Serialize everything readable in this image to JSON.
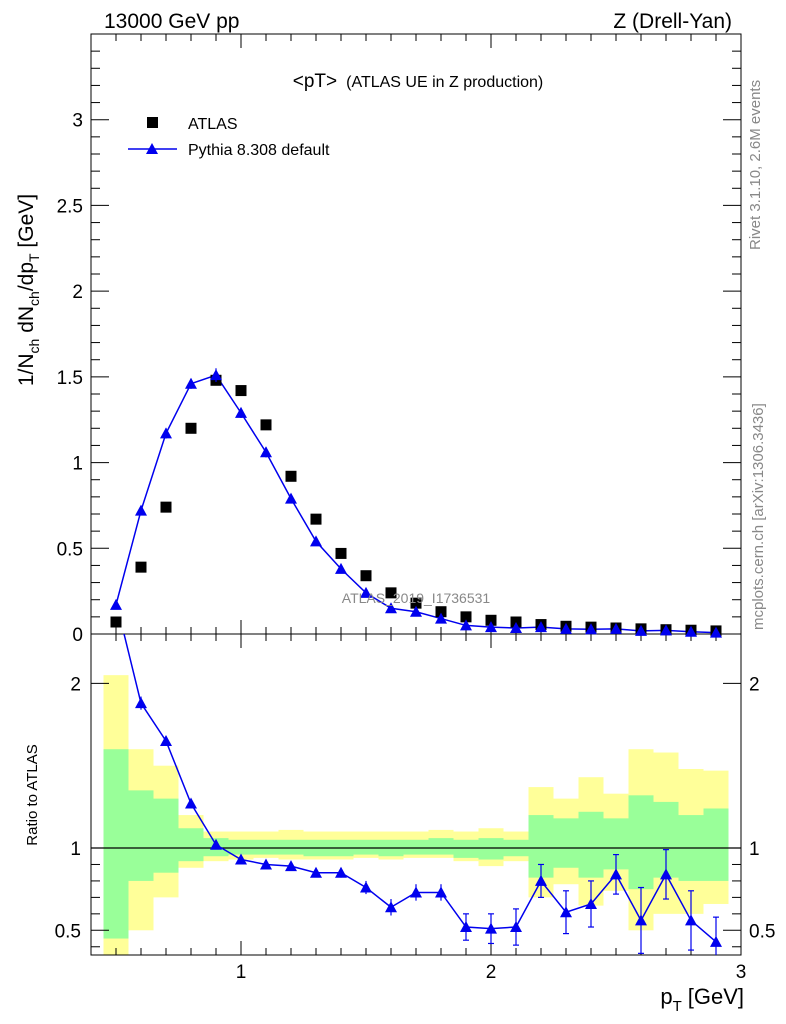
{
  "header": {
    "left": "13000 GeV pp",
    "right": "Z (Drell-Yan)"
  },
  "side_labels": {
    "rivet": "Rivet 3.1.10,  2.6M events",
    "mcplots": "mcplots.cern.ch [arXiv:1306.3436]"
  },
  "chart_data": {
    "type": "scatter",
    "title_main": "<pT>",
    "title_sub": "(ATLAS UE in Z production)",
    "watermark": "ATLAS_2019_I1736531",
    "xlabel_main": "p",
    "xlabel_sub": "T",
    "xlabel_unit": "[GeV]",
    "ylabel_parts": {
      "a": "1/N",
      "a_sub": "ch",
      "b": " dN",
      "b_sub": "ch",
      "c": "/dp",
      "c_sub": "T",
      "d": " [GeV]"
    },
    "ratio_ylabel": "Ratio to ATLAS",
    "xlim": [
      0.4,
      3.0
    ],
    "ylim": [
      0,
      3.5
    ],
    "ratio_ylim": [
      0.35,
      2.3
    ],
    "x_ticks": [
      1,
      2,
      3
    ],
    "y_ticks": [
      0,
      0.5,
      1,
      1.5,
      2,
      2.5,
      3
    ],
    "y_tick_labels": [
      "0",
      "0.5",
      "1",
      "1.5",
      "2",
      "2.5",
      "3"
    ],
    "ratio_ticks": [
      0.5,
      1,
      2
    ],
    "ratio_tick_labels": [
      "0.5",
      "1",
      "2"
    ],
    "x_tick_labels": [
      "1",
      "2",
      "3"
    ],
    "legend_position": "top-left",
    "series": [
      {
        "name": "ATLAS",
        "marker": "square",
        "color": "#000000",
        "x": [
          0.5,
          0.6,
          0.7,
          0.8,
          0.9,
          1.0,
          1.1,
          1.2,
          1.3,
          1.4,
          1.5,
          1.6,
          1.7,
          1.8,
          1.9,
          2.0,
          2.1,
          2.2,
          2.3,
          2.4,
          2.5,
          2.6,
          2.7,
          2.8,
          2.9
        ],
        "y": [
          0.07,
          0.39,
          0.74,
          1.2,
          1.48,
          1.42,
          1.22,
          0.92,
          0.67,
          0.47,
          0.34,
          0.24,
          0.18,
          0.13,
          0.1,
          0.08,
          0.07,
          0.055,
          0.045,
          0.04,
          0.035,
          0.03,
          0.025,
          0.022,
          0.018
        ]
      },
      {
        "name": "Pythia 8.308 default",
        "marker": "triangle",
        "color": "#0000ee",
        "x": [
          0.5,
          0.6,
          0.7,
          0.8,
          0.9,
          1.0,
          1.1,
          1.2,
          1.3,
          1.4,
          1.5,
          1.6,
          1.7,
          1.8,
          1.9,
          2.0,
          2.1,
          2.2,
          2.3,
          2.4,
          2.5,
          2.6,
          2.7,
          2.8,
          2.9
        ],
        "y": [
          0.17,
          0.72,
          1.17,
          1.46,
          1.51,
          1.29,
          1.06,
          0.79,
          0.54,
          0.38,
          0.24,
          0.15,
          0.13,
          0.09,
          0.05,
          0.04,
          0.035,
          0.04,
          0.03,
          0.028,
          0.03,
          0.018,
          0.021,
          0.013,
          0.008
        ],
        "yerr": [
          0.01,
          0.02,
          0.03,
          0.03,
          0.04,
          0.03,
          0.03,
          0.02,
          0.02,
          0.015,
          0.01,
          0.01,
          0.01,
          0.008,
          0.006,
          0.005,
          0.004,
          0.004,
          0.004,
          0.004,
          0.004,
          0.003,
          0.003,
          0.003,
          0.002
        ]
      }
    ],
    "ratio": {
      "x": [
        0.5,
        0.6,
        0.7,
        0.8,
        0.9,
        1.0,
        1.1,
        1.2,
        1.3,
        1.4,
        1.5,
        1.6,
        1.7,
        1.8,
        1.9,
        2.0,
        2.1,
        2.2,
        2.3,
        2.4,
        2.5,
        2.6,
        2.7,
        2.8,
        2.9
      ],
      "y": [
        2.5,
        1.88,
        1.65,
        1.27,
        1.02,
        0.93,
        0.9,
        0.89,
        0.85,
        0.85,
        0.76,
        0.64,
        0.73,
        0.73,
        0.52,
        0.51,
        0.52,
        0.8,
        0.61,
        0.66,
        0.84,
        0.56,
        0.84,
        0.56,
        0.43
      ],
      "yerr": [
        0.05,
        0.04,
        0.03,
        0.02,
        0.02,
        0.02,
        0.02,
        0.02,
        0.02,
        0.03,
        0.04,
        0.05,
        0.05,
        0.05,
        0.08,
        0.09,
        0.11,
        0.1,
        0.13,
        0.14,
        0.12,
        0.2,
        0.15,
        0.18,
        0.15
      ],
      "band_inner": [
        [
          0.45,
          1.6
        ],
        [
          0.8,
          1.35
        ],
        [
          0.85,
          1.3
        ],
        [
          0.92,
          1.12
        ],
        [
          0.95,
          1.06
        ],
        [
          0.96,
          1.05
        ],
        [
          0.96,
          1.05
        ],
        [
          0.96,
          1.05
        ],
        [
          0.95,
          1.05
        ],
        [
          0.95,
          1.05
        ],
        [
          0.96,
          1.05
        ],
        [
          0.95,
          1.05
        ],
        [
          0.96,
          1.05
        ],
        [
          0.96,
          1.06
        ],
        [
          0.94,
          1.05
        ],
        [
          0.93,
          1.06
        ],
        [
          0.95,
          1.05
        ],
        [
          0.82,
          1.2
        ],
        [
          0.88,
          1.18
        ],
        [
          0.82,
          1.22
        ],
        [
          0.87,
          1.18
        ],
        [
          0.75,
          1.32
        ],
        [
          0.82,
          1.28
        ],
        [
          0.8,
          1.2
        ],
        [
          0.8,
          1.24
        ]
      ],
      "band_outer": [
        [
          0.35,
          2.05
        ],
        [
          0.5,
          1.6
        ],
        [
          0.7,
          1.5
        ],
        [
          0.88,
          1.2
        ],
        [
          0.92,
          1.1
        ],
        [
          0.93,
          1.1
        ],
        [
          0.94,
          1.1
        ],
        [
          0.93,
          1.11
        ],
        [
          0.93,
          1.1
        ],
        [
          0.93,
          1.1
        ],
        [
          0.94,
          1.1
        ],
        [
          0.93,
          1.1
        ],
        [
          0.94,
          1.1
        ],
        [
          0.94,
          1.11
        ],
        [
          0.92,
          1.1
        ],
        [
          0.89,
          1.12
        ],
        [
          0.92,
          1.1
        ],
        [
          0.7,
          1.37
        ],
        [
          0.78,
          1.3
        ],
        [
          0.65,
          1.43
        ],
        [
          0.74,
          1.33
        ],
        [
          0.5,
          1.6
        ],
        [
          0.6,
          1.58
        ],
        [
          0.6,
          1.48
        ],
        [
          0.66,
          1.47
        ]
      ]
    },
    "colors": {
      "band_inner": "#99ff99",
      "band_outer": "#ffff99",
      "data": "#000000",
      "mc": "#0000ee",
      "meta_text": "#888888"
    }
  }
}
